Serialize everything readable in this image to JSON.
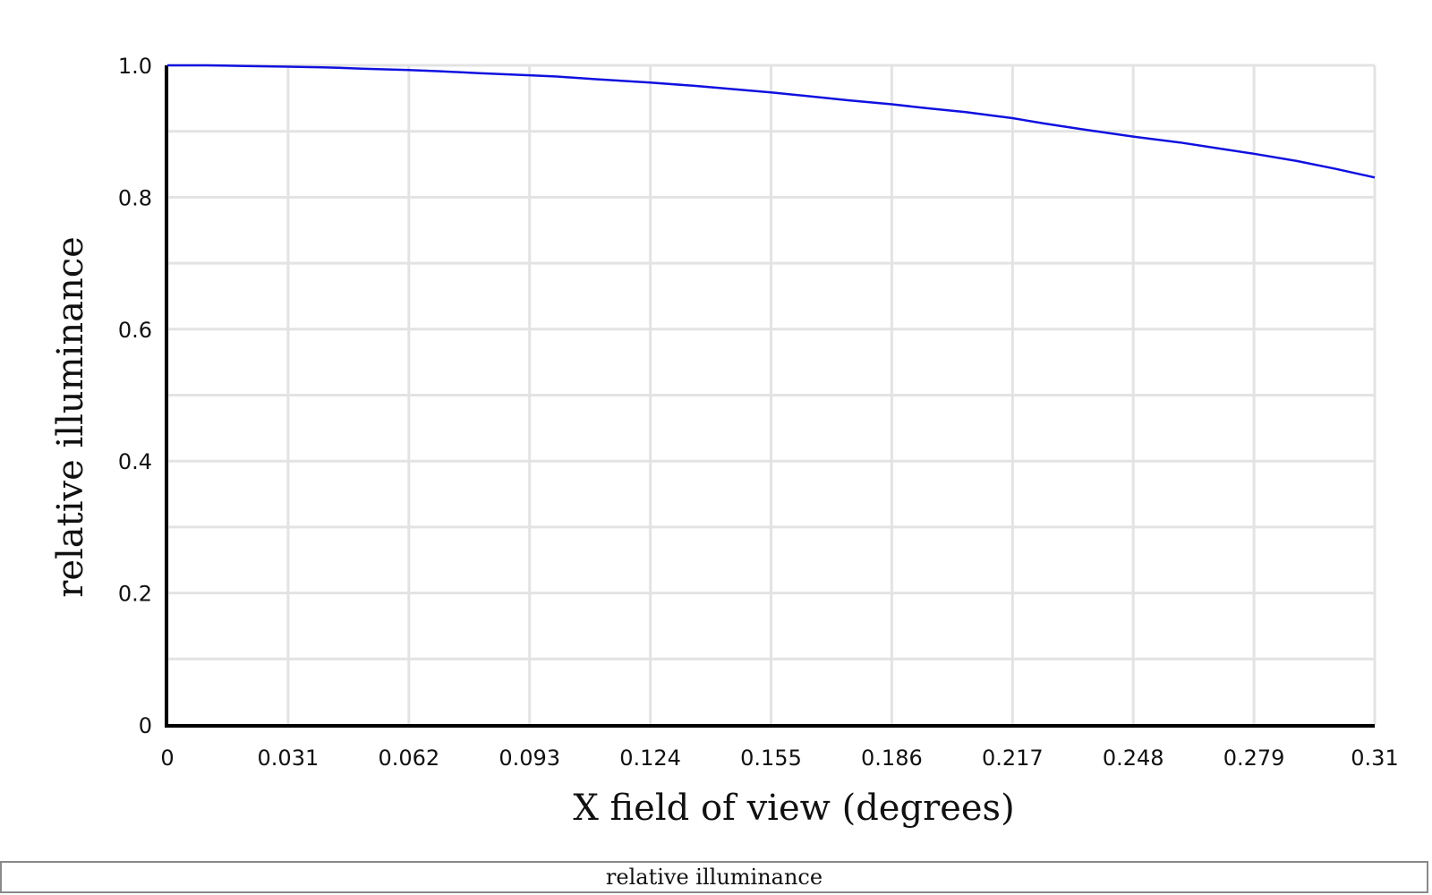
{
  "chart_data": {
    "type": "line",
    "xlabel": "X field of view (degrees)",
    "ylabel": "relative illuminance",
    "xlim": [
      0,
      0.31
    ],
    "ylim": [
      0,
      1.0
    ],
    "x_ticks": [
      "0",
      "0.031",
      "0.062",
      "0.093",
      "0.124",
      "0.155",
      "0.186",
      "0.217",
      "0.248",
      "0.279",
      "0.31"
    ],
    "y_ticks": [
      "0",
      "0.2",
      "0.4",
      "0.6",
      "0.8",
      "1.0"
    ],
    "grid": true,
    "legend": "bottom",
    "series": [
      {
        "name": "relative illuminance",
        "color": "#1010e0",
        "x": [
          0,
          0.01,
          0.02,
          0.031,
          0.04,
          0.05,
          0.062,
          0.07,
          0.08,
          0.093,
          0.1,
          0.11,
          0.124,
          0.135,
          0.145,
          0.155,
          0.165,
          0.175,
          0.186,
          0.195,
          0.205,
          0.217,
          0.225,
          0.235,
          0.248,
          0.26,
          0.27,
          0.279,
          0.29,
          0.3,
          0.31
        ],
        "y": [
          1.0,
          1.0,
          0.999,
          0.998,
          0.997,
          0.995,
          0.993,
          0.991,
          0.988,
          0.985,
          0.983,
          0.979,
          0.974,
          0.969,
          0.964,
          0.959,
          0.953,
          0.947,
          0.941,
          0.935,
          0.929,
          0.92,
          0.912,
          0.903,
          0.892,
          0.883,
          0.874,
          0.866,
          0.855,
          0.843,
          0.83
        ]
      }
    ]
  }
}
